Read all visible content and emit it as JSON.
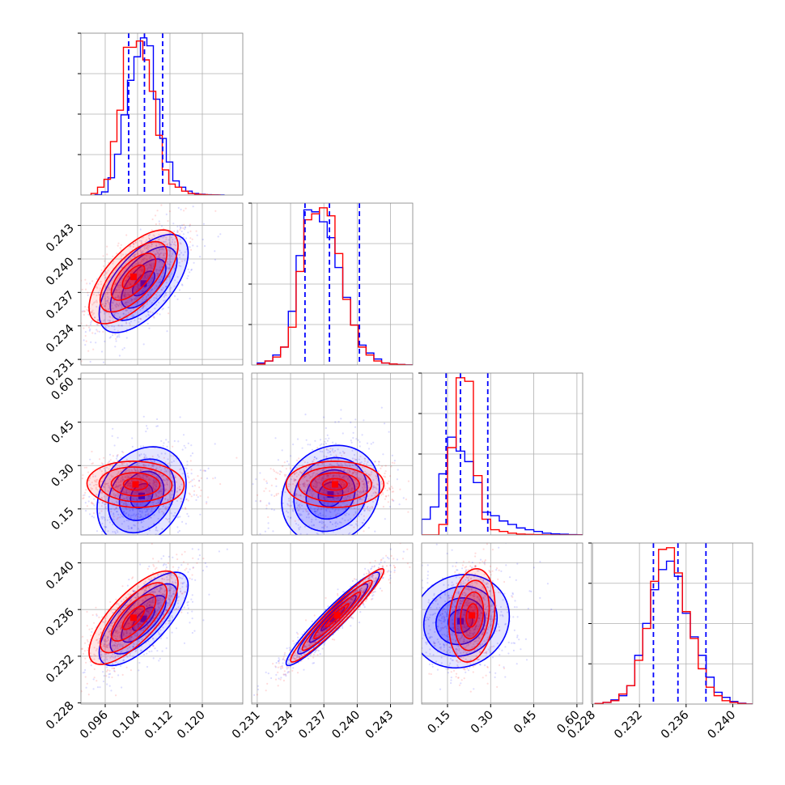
{
  "chart_data": {
    "type": "corner",
    "grid": true,
    "colors": {
      "blue": "#0000ff",
      "red": "#ff0000",
      "grid": "#b0b0b0",
      "frame": "#808080"
    },
    "axes_ticks": {
      "p0": {
        "range": [
          0.09,
          0.13
        ],
        "ticks": [
          "0.096",
          "0.104",
          "0.112",
          "0.120"
        ]
      },
      "p1": {
        "range": [
          0.2305,
          0.245
        ],
        "ticks": [
          "0.231",
          "0.234",
          "0.237",
          "0.240",
          "0.243"
        ]
      },
      "p2": {
        "range": [
          0.06,
          0.62
        ],
        "ticks": [
          "0.15",
          "0.30",
          "0.45",
          "0.60"
        ]
      },
      "p3": {
        "range": [
          0.2279,
          0.2417
        ],
        "ticks": [
          "0.228",
          "0.232",
          "0.236",
          "0.240"
        ]
      }
    },
    "histograms": [
      {
        "param": "p0",
        "quantiles": [
          0.1018,
          0.1057,
          0.1102
        ],
        "blue": {
          "edges": [
            0.0935,
            0.1255
          ],
          "counts": [
            0.2,
            2,
            11,
            26,
            51,
            73,
            88,
            100,
            95,
            61,
            36,
            21,
            9,
            5,
            2.5,
            1,
            0.5,
            0.2,
            0.1,
            0
          ]
        },
        "red": {
          "edges": [
            0.0925,
            0.1245
          ],
          "counts": [
            1,
            5,
            10,
            34,
            54,
            94,
            94,
            98,
            86,
            66,
            38,
            16,
            7,
            5,
            2.5,
            1,
            0.5,
            0.3,
            0.1,
            0
          ]
        }
      },
      {
        "param": "p1",
        "quantiles": [
          0.2353,
          0.2375,
          0.2402
        ],
        "blue": {
          "edges": [
            0.231,
            0.245
          ],
          "counts": [
            1,
            2,
            5,
            9,
            27,
            55,
            78,
            77,
            72,
            64,
            49,
            34,
            20,
            10,
            6,
            3,
            1,
            0.5,
            0.2,
            0
          ]
        },
        "red": {
          "edges": [
            0.231,
            0.245
          ],
          "counts": [
            0.5,
            2,
            4,
            9,
            19,
            47,
            73,
            76,
            79,
            75,
            56,
            33,
            20,
            9,
            5,
            2,
            1,
            0.5,
            0.2,
            0
          ]
        }
      },
      {
        "param": "p2",
        "quantiles": [
          0.145,
          0.195,
          0.29
        ],
        "blue": {
          "edges": [
            0.06,
            0.66
          ],
          "counts": [
            9,
            16,
            35,
            56,
            48,
            42,
            30,
            13,
            11,
            8,
            6,
            4,
            3,
            2,
            1,
            0.6,
            0.4,
            0.2,
            0.1,
            0
          ]
        },
        "red": {
          "edges": [
            0.06,
            0.66
          ],
          "counts": [
            0,
            0,
            6,
            50,
            90,
            88,
            34,
            9,
            3,
            2,
            1,
            0.5,
            0.3,
            0.2,
            0.1,
            0,
            0,
            0,
            0,
            0
          ]
        }
      },
      {
        "param": "p3",
        "quantiles": [
          0.2332,
          0.2353,
          0.2377
        ],
        "blue": {
          "edges": [
            0.2282,
            0.2418
          ],
          "counts": [
            0.3,
            1,
            2.5,
            5,
            11,
            29,
            48,
            68,
            80,
            85,
            76,
            54,
            40,
            29,
            16,
            7,
            4,
            1.5,
            0.5,
            0
          ]
        },
        "red": {
          "edges": [
            0.2282,
            0.2418
          ],
          "counts": [
            0.3,
            1,
            2,
            6,
            11,
            26,
            45,
            73,
            92,
            93,
            78,
            55,
            39,
            21,
            10,
            5,
            2,
            1,
            0.3,
            0
          ]
        }
      }
    ],
    "pairs": [
      {
        "x": "p0",
        "y": "p1",
        "blue": {
          "mean": [
            0.1055,
            0.2378
          ],
          "sd": [
            0.0055,
            0.0022
          ],
          "rho": 0.62
        },
        "red": {
          "mean": [
            0.103,
            0.2384
          ],
          "sd": [
            0.0055,
            0.0021
          ],
          "rho": 0.66
        }
      },
      {
        "x": "p0",
        "y": "p2",
        "blue": {
          "mean": [
            0.105,
            0.195
          ],
          "sd": [
            0.0055,
            0.085
          ],
          "rho": 0.25
        },
        "red": {
          "mean": [
            0.1035,
            0.235
          ],
          "sd": [
            0.006,
            0.04
          ],
          "rho": -0.05
        }
      },
      {
        "x": "p1",
        "y": "p2",
        "blue": {
          "mean": [
            0.2376,
            0.2
          ],
          "sd": [
            0.0022,
            0.085
          ],
          "rho": 0.15
        },
        "red": {
          "mean": [
            0.238,
            0.235
          ],
          "sd": [
            0.0022,
            0.04
          ],
          "rho": 0.0
        }
      },
      {
        "x": "p0",
        "y": "p3",
        "blue": {
          "mean": [
            0.1055,
            0.2352
          ],
          "sd": [
            0.0055,
            0.002
          ],
          "rho": 0.72
        },
        "red": {
          "mean": [
            0.103,
            0.2353
          ],
          "sd": [
            0.0055,
            0.002
          ],
          "rho": 0.74
        }
      },
      {
        "x": "p1",
        "y": "p3",
        "blue": {
          "mean": [
            0.2378,
            0.2352
          ],
          "sd": [
            0.0021,
            0.002
          ],
          "rho": 0.95
        },
        "red": {
          "mean": [
            0.2382,
            0.2355
          ],
          "sd": [
            0.0021,
            0.002
          ],
          "rho": 0.96
        }
      },
      {
        "x": "p2",
        "y": "p3",
        "blue": {
          "mean": [
            0.195,
            0.235
          ],
          "sd": [
            0.085,
            0.002
          ],
          "rho": 0.1
        },
        "red": {
          "mean": [
            0.235,
            0.2355
          ],
          "sd": [
            0.04,
            0.002
          ],
          "rho": 0.2
        }
      }
    ]
  }
}
